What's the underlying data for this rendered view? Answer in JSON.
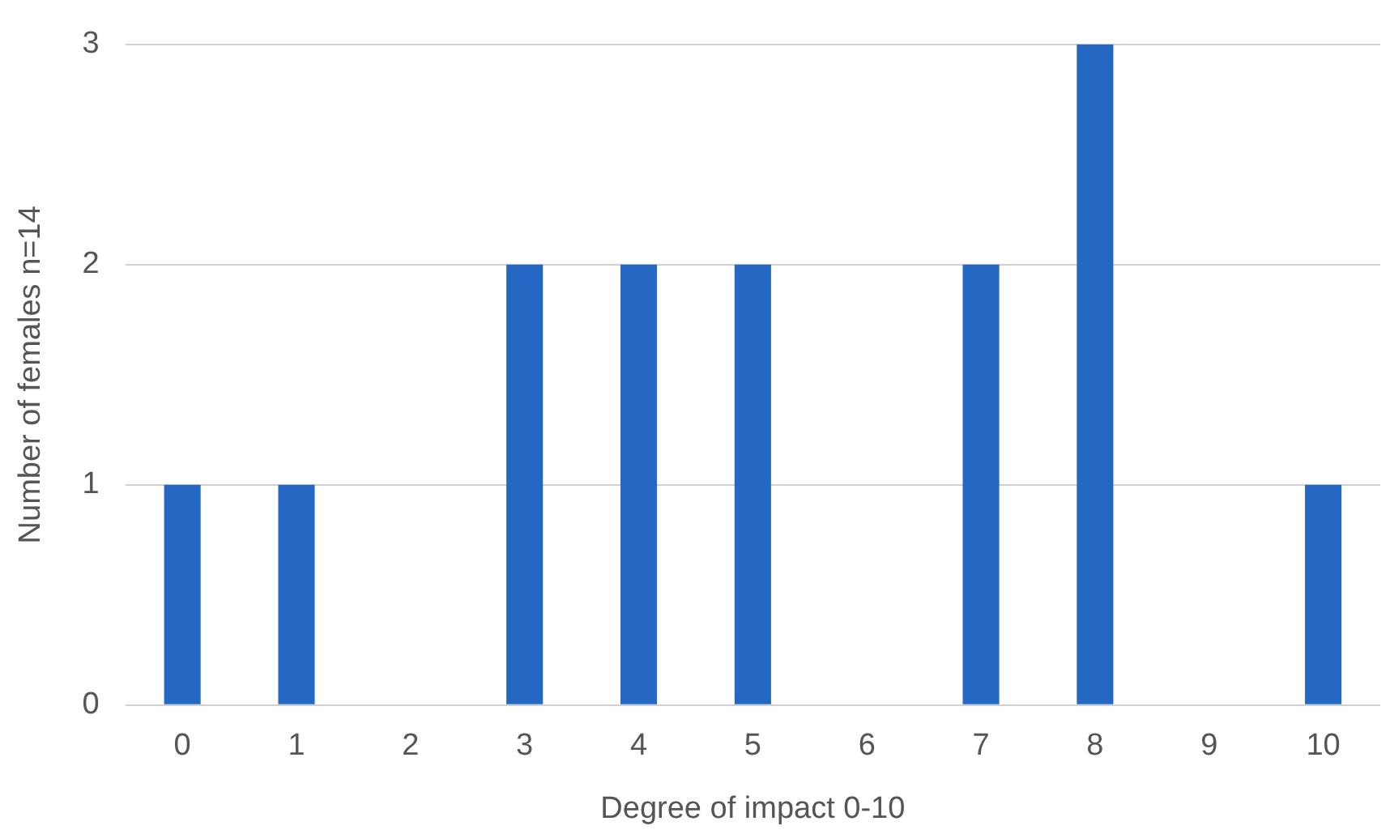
{
  "chart_data": {
    "type": "bar",
    "xlabel": "Degree of impact 0-10",
    "ylabel": "Number of females n=14",
    "categories": [
      "0",
      "1",
      "2",
      "3",
      "4",
      "5",
      "6",
      "7",
      "8",
      "9",
      "10"
    ],
    "values": [
      1,
      1,
      0,
      2,
      2,
      2,
      0,
      2,
      3,
      0,
      1
    ],
    "color": "#2468c4",
    "ylim": [
      0,
      3
    ],
    "yticks": [
      0,
      1,
      2,
      3
    ],
    "grid": "y"
  }
}
